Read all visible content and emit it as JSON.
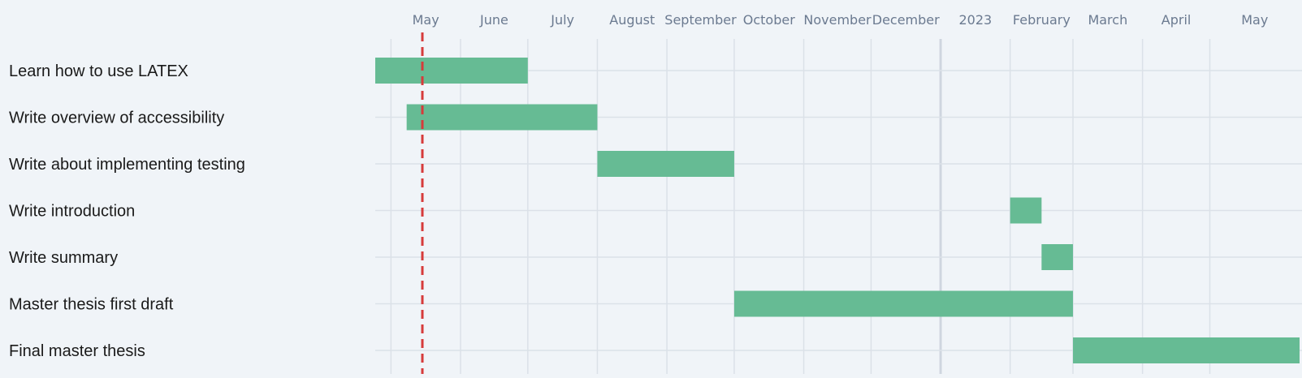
{
  "chart_data": {
    "type": "gantt",
    "x_axis": {
      "type": "time",
      "range": [
        "2022-04-24",
        "2023-06-10"
      ],
      "tick_labels": [
        {
          "label": "May",
          "date": "2022-05-01"
        },
        {
          "label": "June",
          "date": "2022-06-01"
        },
        {
          "label": "July",
          "date": "2022-07-01"
        },
        {
          "label": "August",
          "date": "2022-08-01"
        },
        {
          "label": "September",
          "date": "2022-09-01"
        },
        {
          "label": "October",
          "date": "2022-10-01"
        },
        {
          "label": "November",
          "date": "2022-11-01"
        },
        {
          "label": "December",
          "date": "2022-12-01"
        },
        {
          "label": "2023",
          "date": "2023-01-01"
        },
        {
          "label": "February",
          "date": "2023-02-01"
        },
        {
          "label": "March",
          "date": "2023-03-01"
        },
        {
          "label": "April",
          "date": "2023-04-01"
        },
        {
          "label": "May",
          "date": "2023-05-01"
        }
      ],
      "position": "top"
    },
    "tasks": [
      {
        "name": "Learn how to use LATEX",
        "start": "2022-04-24",
        "end": "2022-07-01"
      },
      {
        "name": "Write overview of accessibility",
        "start": "2022-05-08",
        "end": "2022-08-01"
      },
      {
        "name": "Write about implementing testing",
        "start": "2022-08-01",
        "end": "2022-10-01"
      },
      {
        "name": "Write introduction",
        "start": "2023-02-01",
        "end": "2023-02-15"
      },
      {
        "name": "Write summary",
        "start": "2023-02-15",
        "end": "2023-03-01"
      },
      {
        "name": "Master thesis first draft",
        "start": "2022-10-01",
        "end": "2023-03-01"
      },
      {
        "name": "Final master thesis",
        "start": "2023-03-01",
        "end": "2023-06-10"
      }
    ],
    "today_marker": {
      "date": "2022-05-15",
      "style": "dashed"
    },
    "grid": true,
    "colors": {
      "bar": "#66bb94",
      "today_line": "#d63b3b",
      "grid": "#dbe1e8",
      "background": "#f0f4f8",
      "axis_text": "#6b7a90",
      "task_text": "#1a1a1a"
    }
  }
}
